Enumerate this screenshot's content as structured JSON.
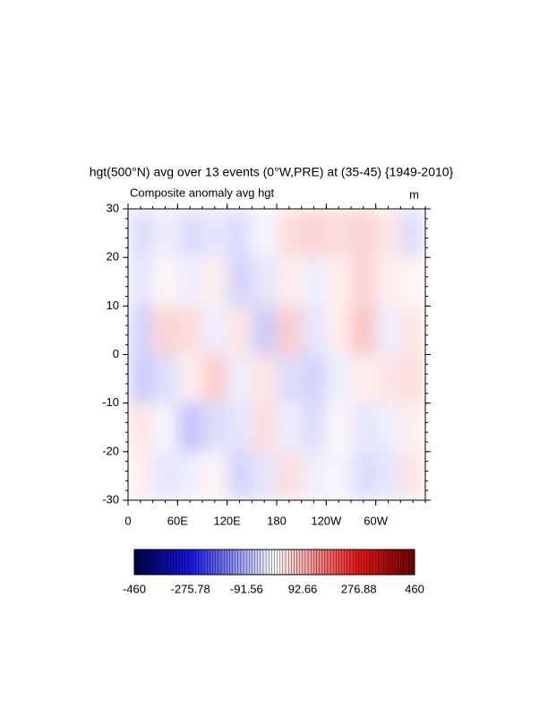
{
  "chart_data": {
    "type": "heatmap",
    "title": "hgt(500°N) avg over 13 events (0°W,PRE) at (35-45) {1949-2010}",
    "subtitle": "Composite anomaly avg hgt",
    "units": "m",
    "xlim": [
      0,
      360
    ],
    "xticks": [
      0,
      {
        "value": 60,
        "label": "60E"
      },
      {
        "value": 120,
        "label": "120E"
      },
      180,
      {
        "value": 240,
        "label": "120W"
      },
      {
        "value": 300,
        "label": "60W"
      }
    ],
    "ylim": [
      -30,
      30
    ],
    "yticks": [
      -30,
      -20,
      -10,
      0,
      10,
      20,
      30
    ],
    "values": [
      [
        -40,
        -20,
        -40,
        -30,
        -40,
        -10,
        40,
        50,
        40,
        50,
        30,
        -40
      ],
      [
        -30,
        10,
        -20,
        20,
        -50,
        -30,
        20,
        -20,
        20,
        50,
        20,
        10
      ],
      [
        -50,
        50,
        40,
        -20,
        30,
        -60,
        60,
        -30,
        20,
        70,
        -20,
        30
      ],
      [
        -60,
        -40,
        20,
        60,
        -20,
        30,
        -40,
        -50,
        -20,
        20,
        30,
        40
      ],
      [
        30,
        -10,
        -70,
        -40,
        -30,
        40,
        -20,
        -40,
        10,
        -30,
        -20,
        20
      ],
      [
        20,
        -30,
        -20,
        10,
        -50,
        -30,
        40,
        -20,
        -10,
        -40,
        -30,
        30
      ]
    ],
    "colorbar": {
      "lim": [
        -460,
        460
      ],
      "ticks": [
        -460,
        -275.78,
        -91.56,
        92.66,
        276.88,
        460
      ]
    }
  }
}
